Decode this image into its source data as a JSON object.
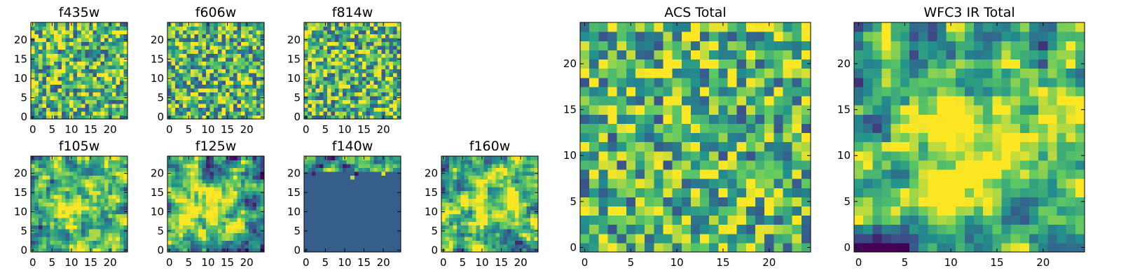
{
  "figure": {
    "colormap": [
      "#440154",
      "#3b528b",
      "#21908d",
      "#5dc863",
      "#fde725"
    ]
  },
  "chart_data": [
    {
      "type": "heatmap",
      "title": "f435w",
      "grid": [
        25,
        25
      ],
      "xlim": [
        0,
        24
      ],
      "ylim": [
        0,
        24
      ],
      "xticks": [
        0,
        5,
        10,
        15,
        20
      ],
      "yticks": [
        0,
        5,
        10,
        15,
        20
      ],
      "pattern": "noise",
      "seed": 11
    },
    {
      "type": "heatmap",
      "title": "f606w",
      "grid": [
        25,
        25
      ],
      "xlim": [
        0,
        24
      ],
      "ylim": [
        0,
        24
      ],
      "xticks": [
        0,
        5,
        10,
        15,
        20
      ],
      "yticks": [
        0,
        5,
        10,
        15,
        20
      ],
      "pattern": "noise",
      "seed": 23
    },
    {
      "type": "heatmap",
      "title": "f814w",
      "grid": [
        25,
        25
      ],
      "xlim": [
        0,
        24
      ],
      "ylim": [
        0,
        24
      ],
      "xticks": [
        0,
        5,
        10,
        15,
        20
      ],
      "yticks": [
        0,
        5,
        10,
        15,
        20
      ],
      "pattern": "noise",
      "seed": 37
    },
    {
      "type": "heatmap",
      "title": "f105w",
      "grid": [
        25,
        25
      ],
      "xlim": [
        0,
        24
      ],
      "ylim": [
        0,
        24
      ],
      "xticks": [
        0,
        5,
        10,
        15,
        20
      ],
      "yticks": [
        0,
        5,
        10,
        15,
        20
      ],
      "pattern": "smooth",
      "seed": 41
    },
    {
      "type": "heatmap",
      "title": "f125w",
      "grid": [
        25,
        25
      ],
      "xlim": [
        0,
        24
      ],
      "ylim": [
        0,
        24
      ],
      "xticks": [
        0,
        5,
        10,
        15,
        20
      ],
      "yticks": [
        0,
        5,
        10,
        15,
        20
      ],
      "pattern": "smooth",
      "seed": 53
    },
    {
      "type": "heatmap",
      "title": "f140w",
      "grid": [
        25,
        25
      ],
      "xlim": [
        0,
        24
      ],
      "ylim": [
        0,
        24
      ],
      "xticks": [
        0,
        5,
        10,
        15,
        20
      ],
      "yticks": [
        0,
        5,
        10,
        15,
        20
      ],
      "pattern": "masked",
      "seed": 61,
      "fill_value": 0.3
    },
    {
      "type": "heatmap",
      "title": "f160w",
      "grid": [
        25,
        25
      ],
      "xlim": [
        0,
        24
      ],
      "ylim": [
        0,
        24
      ],
      "xticks": [
        0,
        5,
        10,
        15,
        20
      ],
      "yticks": [
        0,
        5,
        10,
        15,
        20
      ],
      "pattern": "smooth",
      "seed": 73
    },
    {
      "type": "heatmap",
      "title": "ACS Total",
      "grid": [
        25,
        25
      ],
      "xlim": [
        0,
        24
      ],
      "ylim": [
        0,
        24
      ],
      "xticks": [
        0,
        5,
        10,
        15,
        20
      ],
      "yticks": [
        0,
        5,
        10,
        15,
        20
      ],
      "pattern": "noise",
      "seed": 89
    },
    {
      "type": "heatmap",
      "title": "WFC3 IR Total",
      "grid": [
        25,
        25
      ],
      "xlim": [
        0,
        24
      ],
      "ylim": [
        0,
        24
      ],
      "xticks": [
        0,
        5,
        10,
        15,
        20
      ],
      "yticks": [
        0,
        5,
        10,
        15,
        20
      ],
      "pattern": "smooth",
      "seed": 97
    }
  ]
}
